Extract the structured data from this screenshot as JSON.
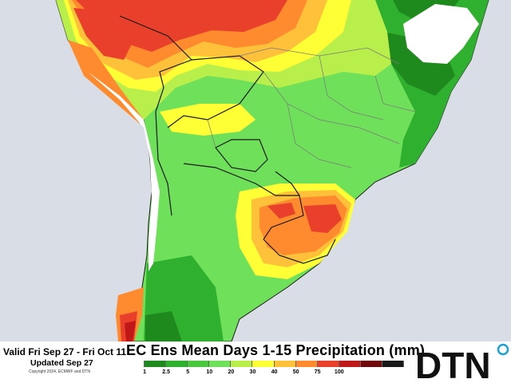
{
  "map": {
    "valid_text": "Valid Fri Sep 27 - Fri Oct 11",
    "updated_text": "Updated Sep 27",
    "copyright_text": "Copyright 2024, ECMWF and DTN",
    "title": "EC Ens Mean Days 1-15 Precipitation (mm)",
    "logo_text": "DTN",
    "colors": {
      "ocean": "#d9dee6",
      "no_data": "#ffffff",
      "border": "#1a1a1a",
      "state_line": "#7a7a7a"
    }
  },
  "legend": {
    "unit": "mm",
    "ticks": [
      "1",
      "2.5",
      "5",
      "10",
      "20",
      "30",
      "40",
      "50",
      "75",
      "100"
    ],
    "colors": [
      "#ffffff",
      "#1e8a1e",
      "#2fb02f",
      "#49c83e",
      "#6fe05a",
      "#b8ef4a",
      "#ffff36",
      "#ffc13a",
      "#ff8b2e",
      "#e8402a",
      "#c01818",
      "#700a0a",
      "#1a1a1a"
    ]
  }
}
